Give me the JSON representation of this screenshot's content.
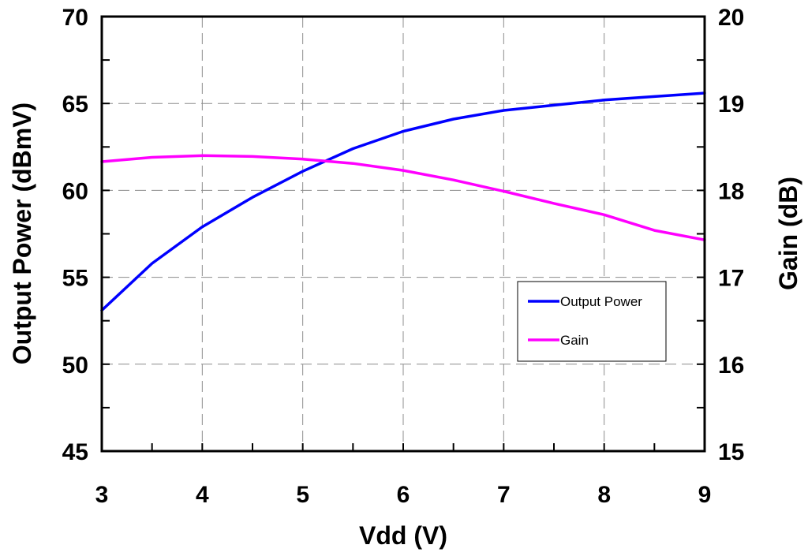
{
  "chart_data": {
    "type": "line",
    "xlabel": "Vdd (V)",
    "ylabel": "Output Power (dBmV)",
    "y2label": "Gain (dB)",
    "xlim": [
      3,
      9
    ],
    "ylim": [
      45,
      70
    ],
    "y2lim": [
      15,
      20
    ],
    "xticks": [
      3,
      4,
      5,
      6,
      7,
      8,
      9
    ],
    "yticks": [
      45,
      50,
      55,
      60,
      65,
      70
    ],
    "y2ticks": [
      15,
      16,
      17,
      18,
      19,
      20
    ],
    "grid": true,
    "legend_position": "lower-right",
    "series": [
      {
        "name": "Output Power",
        "axis": "left",
        "color": "#0000ff",
        "x": [
          3,
          3.5,
          4,
          4.5,
          5,
          5.5,
          6,
          6.5,
          7,
          7.5,
          8,
          8.5,
          9
        ],
        "y": [
          53.1,
          55.8,
          57.9,
          59.6,
          61.1,
          62.4,
          63.4,
          64.1,
          64.6,
          64.9,
          65.2,
          65.4,
          65.6
        ]
      },
      {
        "name": "Gain",
        "axis": "right",
        "color": "#ff00ff",
        "x": [
          3,
          3.5,
          4,
          4.5,
          5,
          5.5,
          6,
          6.5,
          7,
          7.5,
          8,
          8.5,
          9
        ],
        "y": [
          18.33,
          18.38,
          18.4,
          18.39,
          18.36,
          18.31,
          18.23,
          18.12,
          17.99,
          17.85,
          17.72,
          17.54,
          17.43
        ]
      }
    ]
  }
}
